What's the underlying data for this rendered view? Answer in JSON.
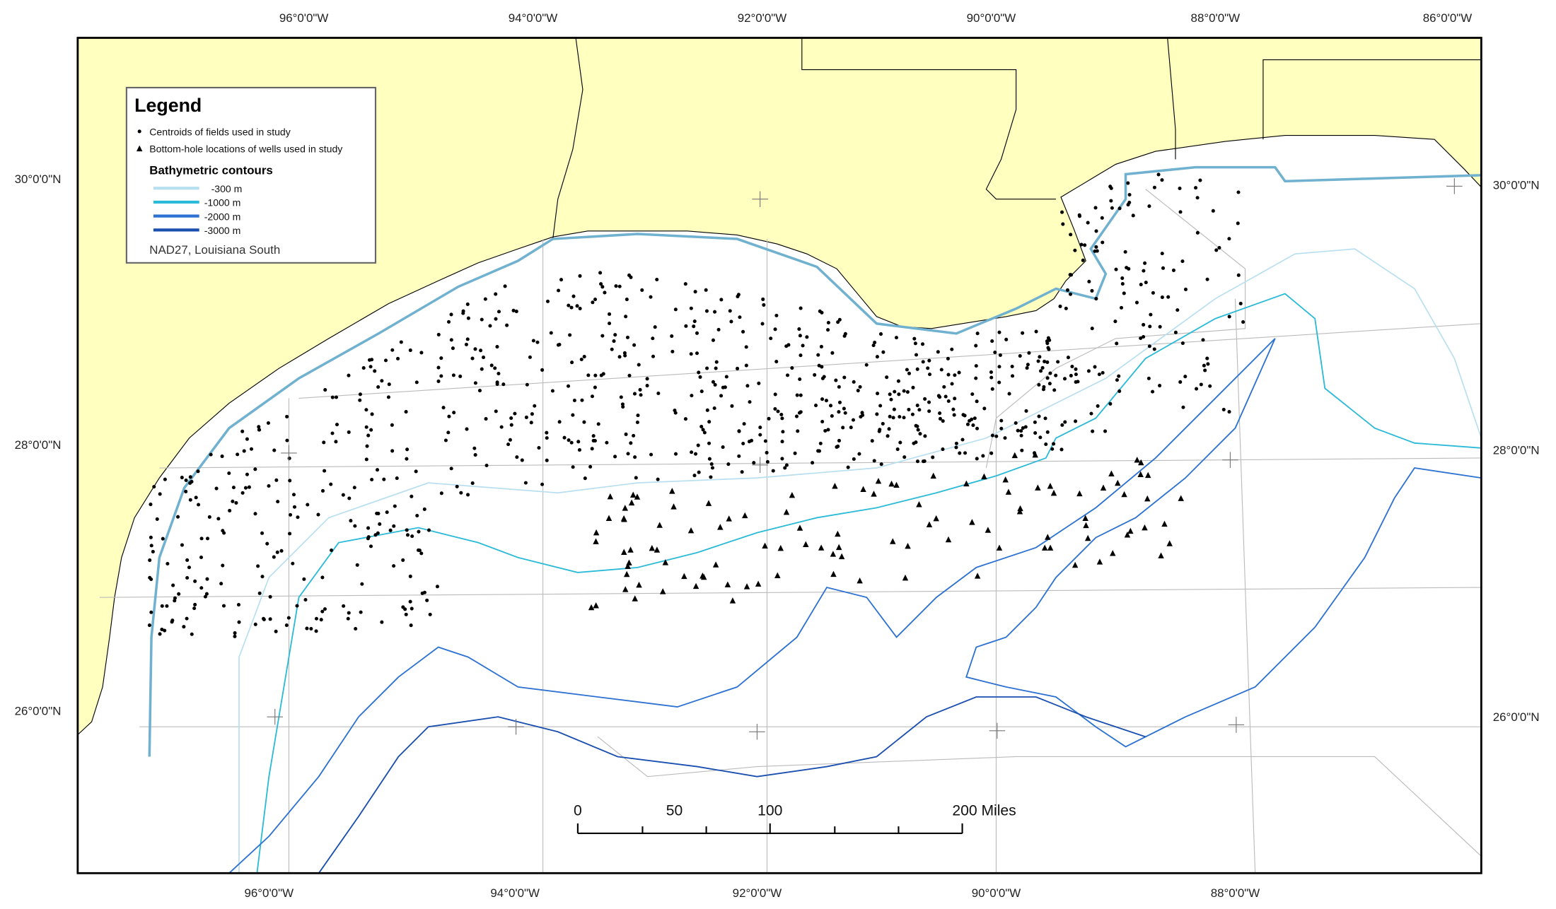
{
  "graticule": {
    "top": [
      "96°0'0\"W",
      "94°0'0\"W",
      "92°0'0\"W",
      "90°0'0\"W",
      "88°0'0\"W",
      "86°0'0\"W"
    ],
    "bottom": [
      "96°0'0\"W",
      "94°0'0\"W",
      "92°0'0\"W",
      "90°0'0\"W",
      "88°0'0\"W"
    ],
    "left": [
      "30°0'0\"N",
      "28°0'0\"N",
      "26°0'0\"N"
    ],
    "right": [
      "30°0'0\"N",
      "28°0'0\"N",
      "26°0'0\"N"
    ]
  },
  "legend": {
    "title": "Legend",
    "symbols": [
      "Centroids of fields used in study",
      "Bottom-hole locations of wells used in study"
    ],
    "contours_title": "Bathymetric contours",
    "contours": [
      "-300 m",
      "-1000 m",
      "-2000 m",
      "-3000 m"
    ],
    "projection": "NAD27, Louisiana South"
  },
  "scale_bar": [
    "0",
    "50",
    "100",
    "200 Miles"
  ]
}
